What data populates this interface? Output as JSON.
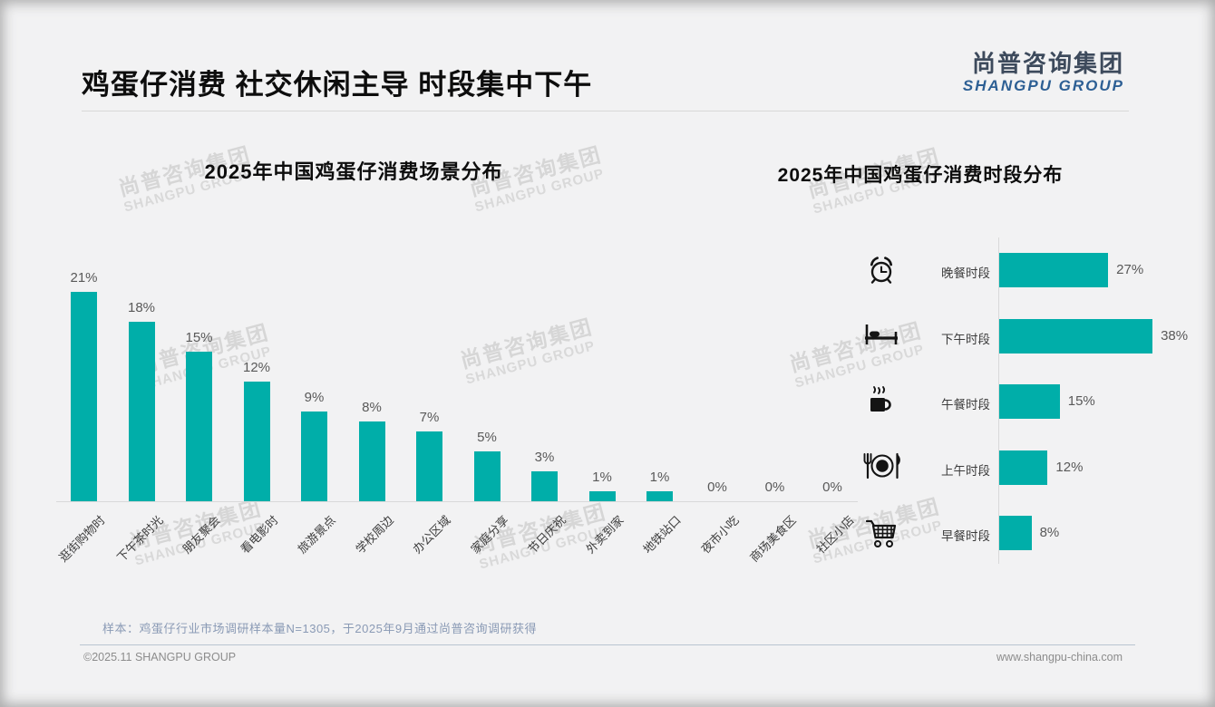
{
  "page": {
    "title": "鸡蛋仔消费 社交休闲主导 时段集中下午",
    "logo": {
      "cn": "尚普咨询集团",
      "en": "SHANGPU GROUP"
    },
    "watermark": {
      "cn": "尚普咨询集团",
      "en": "SHANGPU GROUP"
    },
    "footnote": "样本：鸡蛋仔行业市场调研样本量N=1305，于2025年9月通过尚普咨询调研获得",
    "footer": {
      "left": "©2025.11 SHANGPU GROUP",
      "right": "www.shangpu-china.com"
    }
  },
  "colors": {
    "bar_teal": "#00aea9",
    "logo_dark": "#3d4a5c",
    "logo_blue": "#2d5f94",
    "value_label_gray": "#595959",
    "footnote_blue_gray": "#8a9ab5",
    "footer_gray": "#8c8c8c"
  },
  "chart_data": [
    {
      "type": "bar",
      "orientation": "vertical",
      "title": "2025年中国鸡蛋仔消费场景分布",
      "categories": [
        "逛街购物时",
        "下午茶时光",
        "朋友聚会",
        "看电影时",
        "旅游景点",
        "学校周边",
        "办公区域",
        "家庭分享",
        "节日庆祝",
        "外卖到家",
        "地铁站口",
        "夜市小吃",
        "商场美食区",
        "社区小店"
      ],
      "values": [
        21,
        18,
        15,
        12,
        9,
        8,
        7,
        5,
        3,
        1,
        1,
        0,
        0,
        0
      ],
      "unit": "%",
      "ylim": [
        0,
        21
      ],
      "grid": false,
      "data_labels": true,
      "bar_color": "#00aea9",
      "legend": "none"
    },
    {
      "type": "bar",
      "orientation": "horizontal",
      "title": "2025年中国鸡蛋仔消费时段分布",
      "categories": [
        "晚餐时段",
        "下午时段",
        "午餐时段",
        "上午时段",
        "早餐时段"
      ],
      "values": [
        27,
        38,
        15,
        12,
        8
      ],
      "icons": [
        "alarm-clock-icon",
        "bed-icon",
        "coffee-cup-icon",
        "plate-cutlery-icon",
        "shopping-cart-icon"
      ],
      "unit": "%",
      "xlim": [
        0,
        38
      ],
      "grid": false,
      "data_labels": true,
      "bar_color": "#00aea9",
      "legend": "none"
    }
  ]
}
